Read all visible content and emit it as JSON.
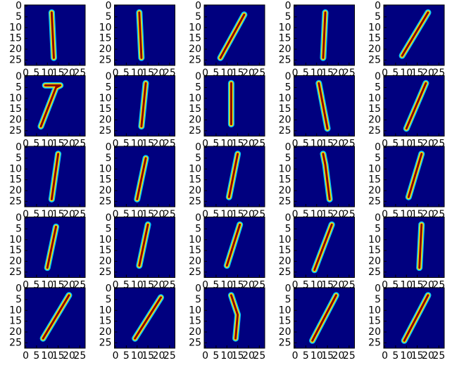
{
  "chart_data": [
    {
      "type": "image",
      "x": [
        12,
        13
      ],
      "y": [
        3,
        24
      ],
      "xlim": [
        -0.5,
        27.5
      ],
      "ylim": [
        27.5,
        -0.5
      ],
      "xticks": [
        0,
        5,
        10,
        15,
        20,
        25
      ],
      "yticks": [
        0,
        5,
        10,
        15,
        20,
        25
      ],
      "background": "#00007f",
      "color": "#8b0000"
    },
    {
      "type": "image",
      "x": [
        11,
        12
      ],
      "y": [
        3,
        24
      ],
      "xlim": [
        -0.5,
        27.5
      ],
      "ylim": [
        27.5,
        -0.5
      ],
      "xticks": [
        0,
        5,
        10,
        15,
        20,
        25
      ],
      "yticks": [
        0,
        5,
        10,
        15,
        20,
        25
      ],
      "background": "#00007f",
      "color": "#8b0000"
    },
    {
      "type": "image",
      "x": [
        18,
        7
      ],
      "y": [
        4,
        24
      ],
      "xlim": [
        -0.5,
        27.5
      ],
      "ylim": [
        27.5,
        -0.5
      ],
      "xticks": [
        0,
        5,
        10,
        15,
        20,
        25
      ],
      "yticks": [
        0,
        5,
        10,
        15,
        20,
        25
      ],
      "background": "#00007f",
      "color": "#8b0000"
    },
    {
      "type": "image",
      "x": [
        14,
        13
      ],
      "y": [
        3,
        24
      ],
      "xlim": [
        -0.5,
        27.5
      ],
      "ylim": [
        27.5,
        -0.5
      ],
      "xticks": [
        0,
        5,
        10,
        15,
        20,
        25
      ],
      "yticks": [
        0,
        5,
        10,
        15,
        20,
        25
      ],
      "background": "#00007f",
      "color": "#8b0000"
    },
    {
      "type": "image",
      "x": [
        20,
        8
      ],
      "y": [
        3,
        23
      ],
      "xlim": [
        -0.5,
        27.5
      ],
      "ylim": [
        27.5,
        -0.5
      ],
      "xticks": [
        0,
        5,
        10,
        15,
        20,
        25
      ],
      "yticks": [
        0,
        5,
        10,
        15,
        20,
        25
      ],
      "background": "#00007f",
      "color": "#8b0000"
    },
    {
      "type": "image",
      "x": [
        9,
        16,
        14,
        7
      ],
      "y": [
        4,
        4,
        5,
        23
      ],
      "xlim": [
        -0.5,
        27.5
      ],
      "ylim": [
        27.5,
        -0.5
      ],
      "xticks": [
        0,
        5,
        10,
        15,
        20,
        25
      ],
      "yticks": [
        0,
        5,
        10,
        15,
        20,
        25
      ],
      "background": "#00007f",
      "color": "#8b0000"
    },
    {
      "type": "image",
      "x": [
        14,
        12
      ],
      "y": [
        3,
        23
      ],
      "xlim": [
        -0.5,
        27.5
      ],
      "ylim": [
        27.5,
        -0.5
      ],
      "xticks": [
        0,
        5,
        10,
        15,
        20,
        25
      ],
      "yticks": [
        0,
        5,
        10,
        15,
        20,
        25
      ],
      "background": "#00007f",
      "color": "#8b0000"
    },
    {
      "type": "image",
      "x": [
        12,
        12
      ],
      "y": [
        3,
        22
      ],
      "xlim": [
        -0.5,
        27.5
      ],
      "ylim": [
        27.5,
        -0.5
      ],
      "xticks": [
        0,
        5,
        10,
        15,
        20,
        25
      ],
      "yticks": [
        0,
        5,
        10,
        15,
        20,
        25
      ],
      "background": "#00007f",
      "color": "#8b0000"
    },
    {
      "type": "image",
      "x": [
        11,
        15
      ],
      "y": [
        3,
        24
      ],
      "xlim": [
        -0.5,
        27.5
      ],
      "ylim": [
        27.5,
        -0.5
      ],
      "xticks": [
        0,
        5,
        10,
        15,
        20,
        25
      ],
      "yticks": [
        0,
        5,
        10,
        15,
        20,
        25
      ],
      "background": "#00007f",
      "color": "#8b0000"
    },
    {
      "type": "image",
      "x": [
        19,
        10
      ],
      "y": [
        3,
        24
      ],
      "xlim": [
        -0.5,
        27.5
      ],
      "ylim": [
        27.5,
        -0.5
      ],
      "xticks": [
        0,
        5,
        10,
        15,
        20,
        25
      ],
      "yticks": [
        0,
        5,
        10,
        15,
        20,
        25
      ],
      "background": "#00007f",
      "color": "#8b0000"
    },
    {
      "type": "image",
      "x": [
        15,
        12
      ],
      "y": [
        3,
        24
      ],
      "xlim": [
        -0.5,
        27.5
      ],
      "ylim": [
        27.5,
        -0.5
      ],
      "xticks": [
        0,
        5,
        10,
        15,
        20,
        25
      ],
      "yticks": [
        0,
        5,
        10,
        15,
        20,
        25
      ],
      "background": "#00007f",
      "color": "#8b0000"
    },
    {
      "type": "image",
      "x": [
        14,
        10
      ],
      "y": [
        5,
        24
      ],
      "xlim": [
        -0.5,
        27.5
      ],
      "ylim": [
        27.5,
        -0.5
      ],
      "xticks": [
        0,
        5,
        10,
        15,
        20,
        25
      ],
      "yticks": [
        0,
        5,
        10,
        15,
        20,
        25
      ],
      "background": "#00007f",
      "color": "#8b0000"
    },
    {
      "type": "image",
      "x": [
        15,
        11
      ],
      "y": [
        3,
        23
      ],
      "xlim": [
        -0.5,
        27.5
      ],
      "ylim": [
        27.5,
        -0.5
      ],
      "xticks": [
        0,
        5,
        10,
        15,
        20,
        25
      ],
      "yticks": [
        0,
        5,
        10,
        15,
        20,
        25
      ],
      "background": "#00007f",
      "color": "#8b0000"
    },
    {
      "type": "image",
      "x": [
        13,
        14,
        16
      ],
      "y": [
        3,
        8,
        24
      ],
      "xlim": [
        -0.5,
        27.5
      ],
      "ylim": [
        27.5,
        -0.5
      ],
      "xticks": [
        0,
        5,
        10,
        15,
        20,
        25
      ],
      "yticks": [
        0,
        5,
        10,
        15,
        20,
        25
      ],
      "background": "#00007f",
      "color": "#8b0000"
    },
    {
      "type": "image",
      "x": [
        17,
        11
      ],
      "y": [
        3,
        23
      ],
      "xlim": [
        -0.5,
        27.5
      ],
      "ylim": [
        27.5,
        -0.5
      ],
      "xticks": [
        0,
        5,
        10,
        15,
        20,
        25
      ],
      "yticks": [
        0,
        5,
        10,
        15,
        20,
        25
      ],
      "background": "#00007f",
      "color": "#8b0000"
    },
    {
      "type": "image",
      "x": [
        14,
        10
      ],
      "y": [
        4,
        23
      ],
      "xlim": [
        -0.5,
        27.5
      ],
      "ylim": [
        27.5,
        -0.5
      ],
      "xticks": [
        0,
        5,
        10,
        15,
        20,
        25
      ],
      "yticks": [
        0,
        5,
        10,
        15,
        20,
        25
      ],
      "background": "#00007f",
      "color": "#8b0000"
    },
    {
      "type": "image",
      "x": [
        15,
        11
      ],
      "y": [
        3,
        22
      ],
      "xlim": [
        -0.5,
        27.5
      ],
      "ylim": [
        27.5,
        -0.5
      ],
      "xticks": [
        0,
        5,
        10,
        15,
        20,
        25
      ],
      "yticks": [
        0,
        5,
        10,
        15,
        20,
        25
      ],
      "background": "#00007f",
      "color": "#8b0000"
    },
    {
      "type": "image",
      "x": [
        16,
        10
      ],
      "y": [
        3,
        22
      ],
      "xlim": [
        -0.5,
        27.5
      ],
      "ylim": [
        27.5,
        -0.5
      ],
      "xticks": [
        0,
        5,
        10,
        15,
        20,
        25
      ],
      "yticks": [
        0,
        5,
        10,
        15,
        20,
        25
      ],
      "background": "#00007f",
      "color": "#8b0000"
    },
    {
      "type": "image",
      "x": [
        17,
        9
      ],
      "y": [
        3,
        24
      ],
      "xlim": [
        -0.5,
        27.5
      ],
      "ylim": [
        27.5,
        -0.5
      ],
      "xticks": [
        0,
        5,
        10,
        15,
        20,
        25
      ],
      "yticks": [
        0,
        5,
        10,
        15,
        20,
        25
      ],
      "background": "#00007f",
      "color": "#8b0000"
    },
    {
      "type": "image",
      "x": [
        17,
        16
      ],
      "y": [
        3,
        23
      ],
      "xlim": [
        -0.5,
        27.5
      ],
      "ylim": [
        27.5,
        -0.5
      ],
      "xticks": [
        0,
        5,
        10,
        15,
        20,
        25
      ],
      "yticks": [
        0,
        5,
        10,
        15,
        20,
        25
      ],
      "background": "#00007f",
      "color": "#8b0000"
    },
    {
      "type": "image",
      "x": [
        20,
        8
      ],
      "y": [
        3,
        23
      ],
      "xlim": [
        -0.5,
        27.5
      ],
      "ylim": [
        27.5,
        -0.5
      ],
      "xticks": [
        0,
        5,
        10,
        15,
        20,
        25
      ],
      "yticks": [
        0,
        5,
        10,
        15,
        20,
        25
      ],
      "background": "#00007f",
      "color": "#8b0000"
    },
    {
      "type": "image",
      "x": [
        21,
        9
      ],
      "y": [
        4,
        23
      ],
      "xlim": [
        -0.5,
        27.5
      ],
      "ylim": [
        27.5,
        -0.5
      ],
      "xticks": [
        0,
        5,
        10,
        15,
        20,
        25
      ],
      "yticks": [
        0,
        5,
        10,
        15,
        20,
        25
      ],
      "background": "#00007f",
      "color": "#8b0000"
    },
    {
      "type": "image",
      "x": [
        12,
        15,
        14
      ],
      "y": [
        3,
        12,
        23
      ],
      "xlim": [
        -0.5,
        27.5
      ],
      "ylim": [
        27.5,
        -0.5
      ],
      "xticks": [
        0,
        5,
        10,
        15,
        20,
        25
      ],
      "yticks": [
        0,
        5,
        10,
        15,
        20,
        25
      ],
      "background": "#00007f",
      "color": "#8b0000"
    },
    {
      "type": "image",
      "x": [
        19,
        8
      ],
      "y": [
        3,
        24
      ],
      "xlim": [
        -0.5,
        27.5
      ],
      "ylim": [
        27.5,
        -0.5
      ],
      "xticks": [
        0,
        5,
        10,
        15,
        20,
        25
      ],
      "yticks": [
        0,
        5,
        10,
        15,
        20,
        25
      ],
      "background": "#00007f",
      "color": "#8b0000"
    },
    {
      "type": "image",
      "x": [
        20,
        9
      ],
      "y": [
        3,
        24
      ],
      "xlim": [
        -0.5,
        27.5
      ],
      "ylim": [
        27.5,
        -0.5
      ],
      "xticks": [
        0,
        5,
        10,
        15,
        20,
        25
      ],
      "yticks": [
        0,
        5,
        10,
        15,
        20,
        25
      ],
      "background": "#00007f",
      "color": "#8b0000"
    }
  ]
}
